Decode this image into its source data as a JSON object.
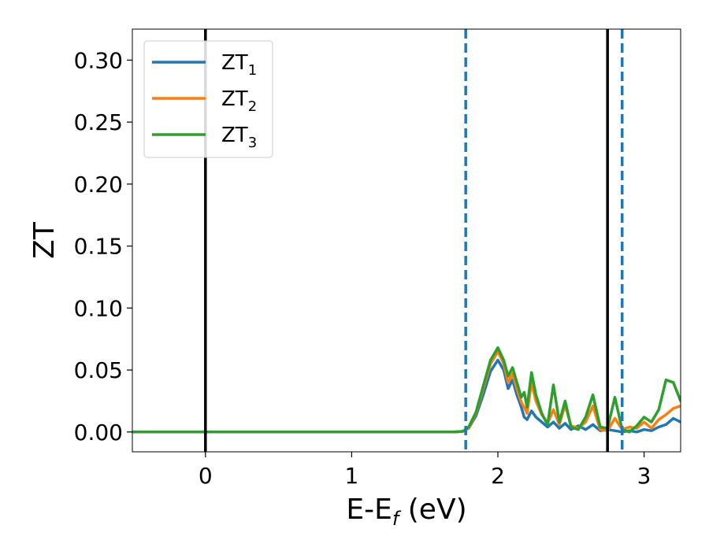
{
  "chart_data": {
    "type": "line",
    "xlabel_main": "E-E",
    "xlabel_sub": "f",
    "xlabel_unit": " (eV)",
    "ylabel": "ZT",
    "xlim": [
      -0.5,
      3.25
    ],
    "ylim": [
      -0.016,
      0.325
    ],
    "xticks": [
      0,
      1,
      2,
      3
    ],
    "yticks": [
      0.0,
      0.05,
      0.1,
      0.15,
      0.2,
      0.25,
      0.3
    ],
    "ytick_labels": [
      "0.00",
      "0.05",
      "0.10",
      "0.15",
      "0.20",
      "0.25",
      "0.30"
    ],
    "legend_position": "upper-left",
    "vlines": [
      {
        "x": 0.0,
        "style": "solid",
        "color": "#000000"
      },
      {
        "x": 1.78,
        "style": "dashed",
        "color": "#1f77b4"
      },
      {
        "x": 2.75,
        "style": "solid",
        "color": "#000000"
      },
      {
        "x": 2.85,
        "style": "dashed",
        "color": "#1f77b4"
      }
    ],
    "series": [
      {
        "name": "ZT",
        "sub": "1",
        "color": "#1f77b4",
        "x": [
          -0.5,
          1.7,
          1.76,
          1.8,
          1.85,
          1.9,
          1.95,
          2.0,
          2.04,
          2.07,
          2.1,
          2.13,
          2.16,
          2.18,
          2.2,
          2.23,
          2.26,
          2.3,
          2.34,
          2.38,
          2.42,
          2.46,
          2.5,
          2.55,
          2.6,
          2.65,
          2.7,
          2.75,
          2.8,
          2.85,
          2.9,
          2.95,
          3.0,
          3.05,
          3.1,
          3.15,
          3.2,
          3.25
        ],
        "y": [
          0.0,
          0.0,
          0.0005,
          0.003,
          0.013,
          0.03,
          0.049,
          0.058,
          0.05,
          0.035,
          0.042,
          0.03,
          0.02,
          0.012,
          0.01,
          0.017,
          0.012,
          0.008,
          0.004,
          0.008,
          0.003,
          0.007,
          0.002,
          0.005,
          0.002,
          0.006,
          0.001,
          0.002,
          0.001,
          0.0,
          0.001,
          0.0,
          0.002,
          0.001,
          0.004,
          0.006,
          0.011,
          0.008
        ]
      },
      {
        "name": "ZT",
        "sub": "2",
        "color": "#ff7f0e",
        "x": [
          -0.5,
          1.7,
          1.76,
          1.8,
          1.85,
          1.9,
          1.95,
          2.0,
          2.04,
          2.07,
          2.1,
          2.13,
          2.16,
          2.18,
          2.2,
          2.23,
          2.26,
          2.3,
          2.34,
          2.38,
          2.42,
          2.46,
          2.5,
          2.55,
          2.6,
          2.65,
          2.7,
          2.75,
          2.8,
          2.85,
          2.9,
          2.95,
          3.0,
          3.05,
          3.1,
          3.15,
          3.2,
          3.25
        ],
        "y": [
          0.0,
          0.0,
          0.0005,
          0.003,
          0.015,
          0.035,
          0.055,
          0.065,
          0.055,
          0.04,
          0.047,
          0.035,
          0.024,
          0.02,
          0.015,
          0.04,
          0.025,
          0.014,
          0.007,
          0.018,
          0.006,
          0.022,
          0.005,
          0.003,
          0.008,
          0.021,
          0.002,
          0.001,
          0.011,
          0.002,
          0.004,
          0.003,
          0.008,
          0.003,
          0.01,
          0.014,
          0.019,
          0.021
        ]
      },
      {
        "name": "ZT",
        "sub": "3",
        "color": "#2ca02c",
        "x": [
          -0.5,
          1.7,
          1.76,
          1.8,
          1.85,
          1.9,
          1.95,
          2.0,
          2.04,
          2.07,
          2.1,
          2.13,
          2.16,
          2.18,
          2.2,
          2.23,
          2.26,
          2.3,
          2.34,
          2.38,
          2.42,
          2.46,
          2.5,
          2.55,
          2.6,
          2.65,
          2.7,
          2.75,
          2.8,
          2.85,
          2.9,
          2.95,
          3.0,
          3.05,
          3.1,
          3.15,
          3.2,
          3.25
        ],
        "y": [
          0.0,
          0.0,
          0.0005,
          0.004,
          0.016,
          0.037,
          0.058,
          0.068,
          0.058,
          0.045,
          0.052,
          0.04,
          0.028,
          0.032,
          0.02,
          0.048,
          0.03,
          0.015,
          0.006,
          0.038,
          0.008,
          0.025,
          0.004,
          0.002,
          0.012,
          0.03,
          0.004,
          0.003,
          0.028,
          0.002,
          0.0,
          0.005,
          0.012,
          0.008,
          0.018,
          0.042,
          0.04,
          0.025
        ]
      }
    ]
  }
}
